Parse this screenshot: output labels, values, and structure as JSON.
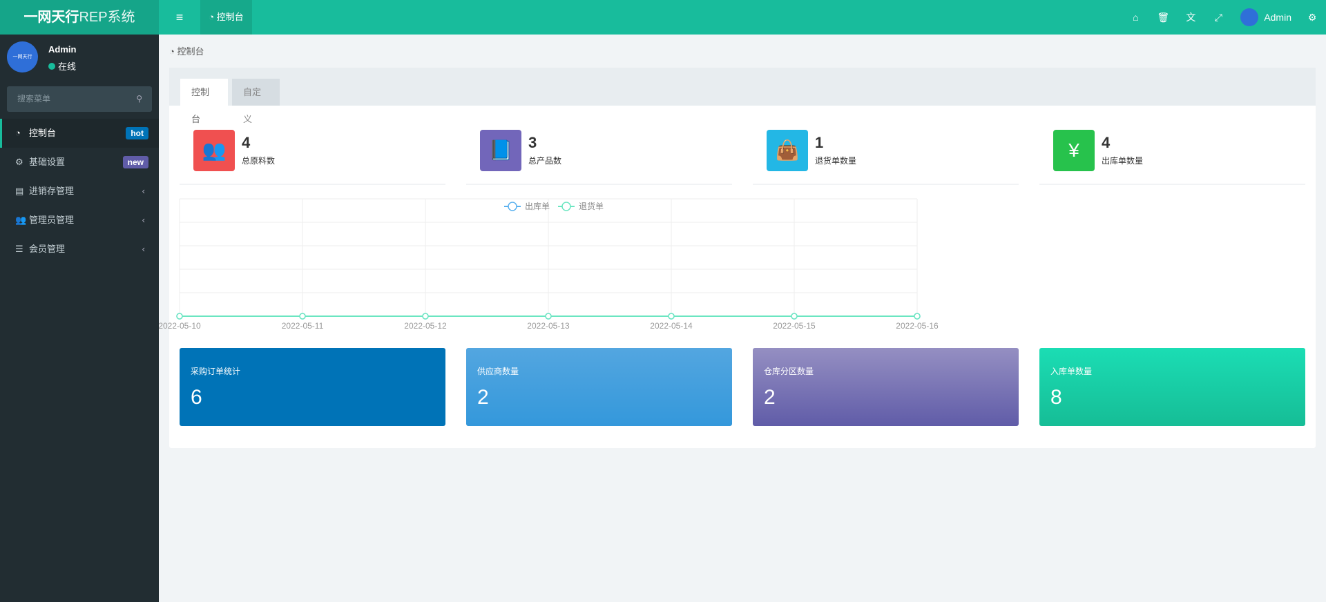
{
  "header": {
    "logo_bold": "一网天行",
    "logo_rest": "REP系统",
    "menu_icon": "bars-icon",
    "tab": "控制台",
    "user": "Admin",
    "icons": [
      "home-icon",
      "trash-icon",
      "translate-icon",
      "fullscreen-icon",
      "cogs-icon"
    ]
  },
  "sidebar": {
    "user": "Admin",
    "status": "在线",
    "avatar_text": "一网天行",
    "search_placeholder": "搜索菜单",
    "items": [
      {
        "label": "控制台",
        "icon": "dashboard-icon",
        "badge": "hot",
        "badge_color": "#0073b7"
      },
      {
        "label": "基础设置",
        "icon": "cogs-icon",
        "badge": "new",
        "badge_color": "#605ca8"
      },
      {
        "label": "进销存管理",
        "icon": "file-icon"
      },
      {
        "label": "管理员管理",
        "icon": "users-icon"
      },
      {
        "label": "会员管理",
        "icon": "list-icon"
      }
    ]
  },
  "breadcrumb": "控制台",
  "tabs": [
    "控制台",
    "自定义"
  ],
  "stats": [
    {
      "value": "4",
      "label": "总原料数",
      "color": "#f05050",
      "icon": "users-icon",
      "glyph": "👥"
    },
    {
      "value": "3",
      "label": "总产品数",
      "color": "#7266ba",
      "icon": "book-icon",
      "glyph": "📘"
    },
    {
      "value": "1",
      "label": "退货单数量",
      "color": "#23b7e5",
      "icon": "shopping-bag-icon",
      "glyph": "👜"
    },
    {
      "value": "4",
      "label": "出库单数量",
      "color": "#27c24c",
      "icon": "yen-icon",
      "glyph": "¥"
    }
  ],
  "chart_data": {
    "type": "line",
    "x": [
      "2022-05-10",
      "2022-05-11",
      "2022-05-12",
      "2022-05-13",
      "2022-05-14",
      "2022-05-15",
      "2022-05-16"
    ],
    "series": [
      {
        "name": "出库单",
        "values": [
          0,
          0,
          0,
          0,
          0,
          0,
          0
        ],
        "color": "#5ab1ef"
      },
      {
        "name": "退货单",
        "values": [
          0,
          0,
          0,
          0,
          0,
          0,
          0
        ],
        "color": "#6be6c1"
      }
    ],
    "legend": "top-center",
    "grid": true
  },
  "cards": [
    {
      "label": "采购订单统计",
      "value": "6",
      "bg": "#0073b7"
    },
    {
      "label": "供应商数量",
      "value": "2",
      "bg": "linear-gradient(#53a6e0,#3498db)"
    },
    {
      "label": "仓库分区数量",
      "value": "2",
      "bg": "linear-gradient(#958fc2,#605ca8)"
    },
    {
      "label": "入库单数量",
      "value": "8",
      "bg": "linear-gradient(#1bddb4,#16bd96)"
    }
  ]
}
